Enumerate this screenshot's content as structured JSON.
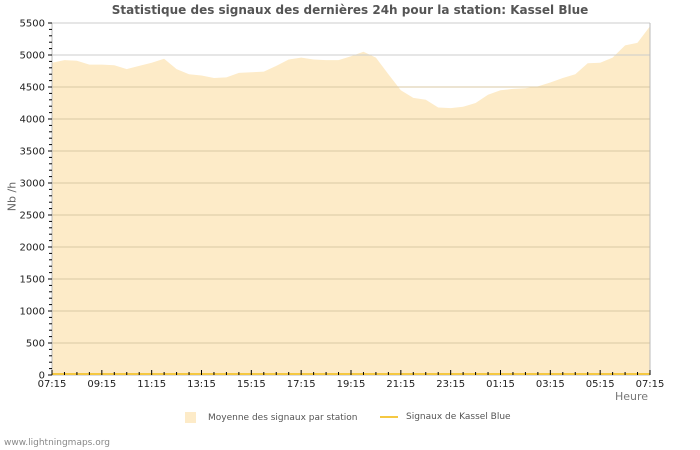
{
  "header": {
    "title": "Statistique des signaux des dernières 24h pour la station: Kassel Blue"
  },
  "axes": {
    "ylabel": "Nb /h",
    "xlabel": "Heure"
  },
  "legend": {
    "items": [
      {
        "label": "Moyenne des signaux par station",
        "type": "area",
        "color": "#fdebc8"
      },
      {
        "label": "Signaux de Kassel Blue",
        "type": "line",
        "color": "#f5c842"
      }
    ]
  },
  "footer": {
    "credit": "www.lightningmaps.org"
  },
  "colors": {
    "area_fill": "#fdebc8",
    "station_line": "#f5c842",
    "grid": "#cccccc",
    "grid_inside": "#d9c9a4",
    "axis": "#bbbbbb"
  },
  "chart_data": {
    "type": "area",
    "title": "Statistique des signaux des dernières 24h pour la station: Kassel Blue",
    "xlabel": "Heure",
    "ylabel": "Nb /h",
    "ylim": [
      0,
      5500
    ],
    "yticks": [
      0,
      500,
      1000,
      1500,
      2000,
      2500,
      3000,
      3500,
      4000,
      4500,
      5000,
      5500
    ],
    "xticks": [
      "07:15",
      "09:15",
      "11:15",
      "13:15",
      "15:15",
      "17:15",
      "19:15",
      "21:15",
      "23:15",
      "01:15",
      "03:15",
      "05:15",
      "07:15"
    ],
    "grid": true,
    "legend_position": "bottom",
    "x": [
      "07:15",
      "07:45",
      "08:15",
      "08:45",
      "09:15",
      "09:45",
      "10:15",
      "10:45",
      "11:15",
      "11:45",
      "12:15",
      "12:45",
      "13:15",
      "13:45",
      "14:15",
      "14:45",
      "15:15",
      "15:45",
      "16:15",
      "16:45",
      "17:15",
      "17:45",
      "18:15",
      "18:45",
      "19:15",
      "19:45",
      "20:15",
      "20:45",
      "21:15",
      "21:45",
      "22:15",
      "22:45",
      "23:15",
      "23:45",
      "00:15",
      "00:45",
      "01:15",
      "01:45",
      "02:15",
      "02:45",
      "03:15",
      "03:45",
      "04:15",
      "04:45",
      "05:15",
      "05:45",
      "06:15",
      "06:45",
      "07:15"
    ],
    "series": [
      {
        "name": "Moyenne des signaux par station",
        "type": "area",
        "values": [
          4880,
          4920,
          4910,
          4850,
          4850,
          4840,
          4780,
          4830,
          4880,
          4940,
          4780,
          4700,
          4680,
          4640,
          4650,
          4720,
          4730,
          4740,
          4830,
          4930,
          4960,
          4930,
          4920,
          4920,
          4980,
          5050,
          4960,
          4700,
          4450,
          4330,
          4300,
          4180,
          4170,
          4190,
          4250,
          4380,
          4450,
          4470,
          4480,
          4510,
          4570,
          4640,
          4700,
          4870,
          4880,
          4960,
          5150,
          5190,
          5450
        ]
      },
      {
        "name": "Signaux de Kassel Blue",
        "type": "line",
        "values": [
          0,
          0,
          0,
          0,
          0,
          0,
          0,
          0,
          0,
          0,
          0,
          0,
          0,
          0,
          0,
          0,
          0,
          0,
          0,
          0,
          0,
          0,
          0,
          0,
          0,
          0,
          0,
          0,
          0,
          0,
          0,
          0,
          0,
          0,
          0,
          0,
          0,
          0,
          0,
          0,
          0,
          0,
          0,
          0,
          0,
          0,
          0,
          0,
          0
        ]
      }
    ]
  }
}
